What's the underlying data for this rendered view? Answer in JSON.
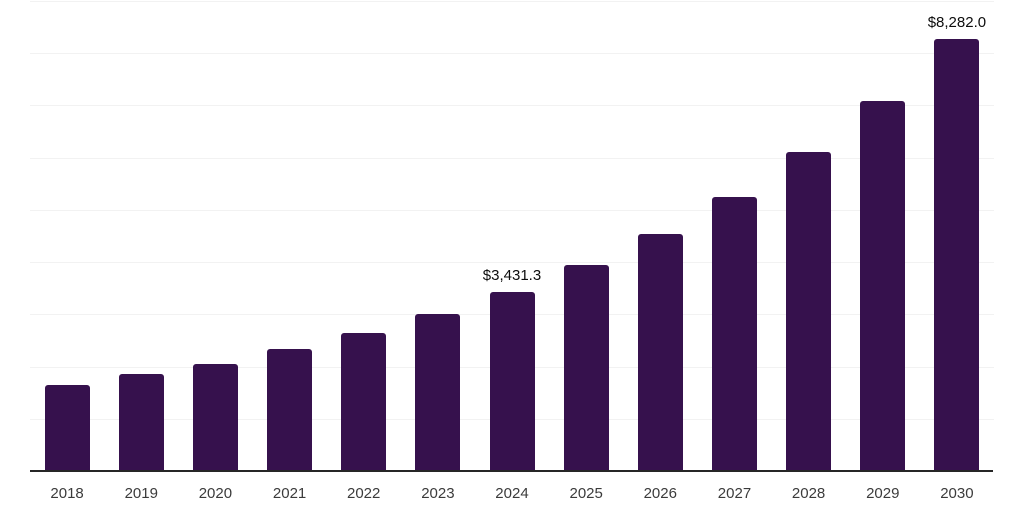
{
  "chart_data": {
    "type": "bar",
    "title": "",
    "xlabel": "",
    "ylabel": "",
    "categories": [
      "2018",
      "2019",
      "2020",
      "2021",
      "2022",
      "2023",
      "2024",
      "2025",
      "2026",
      "2027",
      "2028",
      "2029",
      "2030"
    ],
    "values": [
      1640,
      1860,
      2050,
      2340,
      2650,
      3010,
      3431.3,
      3940,
      4530,
      5240,
      6100,
      7080,
      8282
    ],
    "data_labels": [
      "",
      "",
      "",
      "",
      "",
      "",
      "$3,431.3",
      "",
      "",
      "",
      "",
      "",
      "$8,282.0"
    ],
    "ylim": [
      0,
      9000
    ],
    "gridline_step": 1000,
    "grid": "horizontal-only",
    "legend": "none",
    "y_tick_labels_visible": false,
    "colors": {
      "bar": "#36114d",
      "gridline": "#f2f2f2",
      "axis_line": "#262626",
      "x_label_text": "#3b3b3b",
      "data_label_text": "#0d0d0d",
      "background": "#ffffff"
    }
  }
}
